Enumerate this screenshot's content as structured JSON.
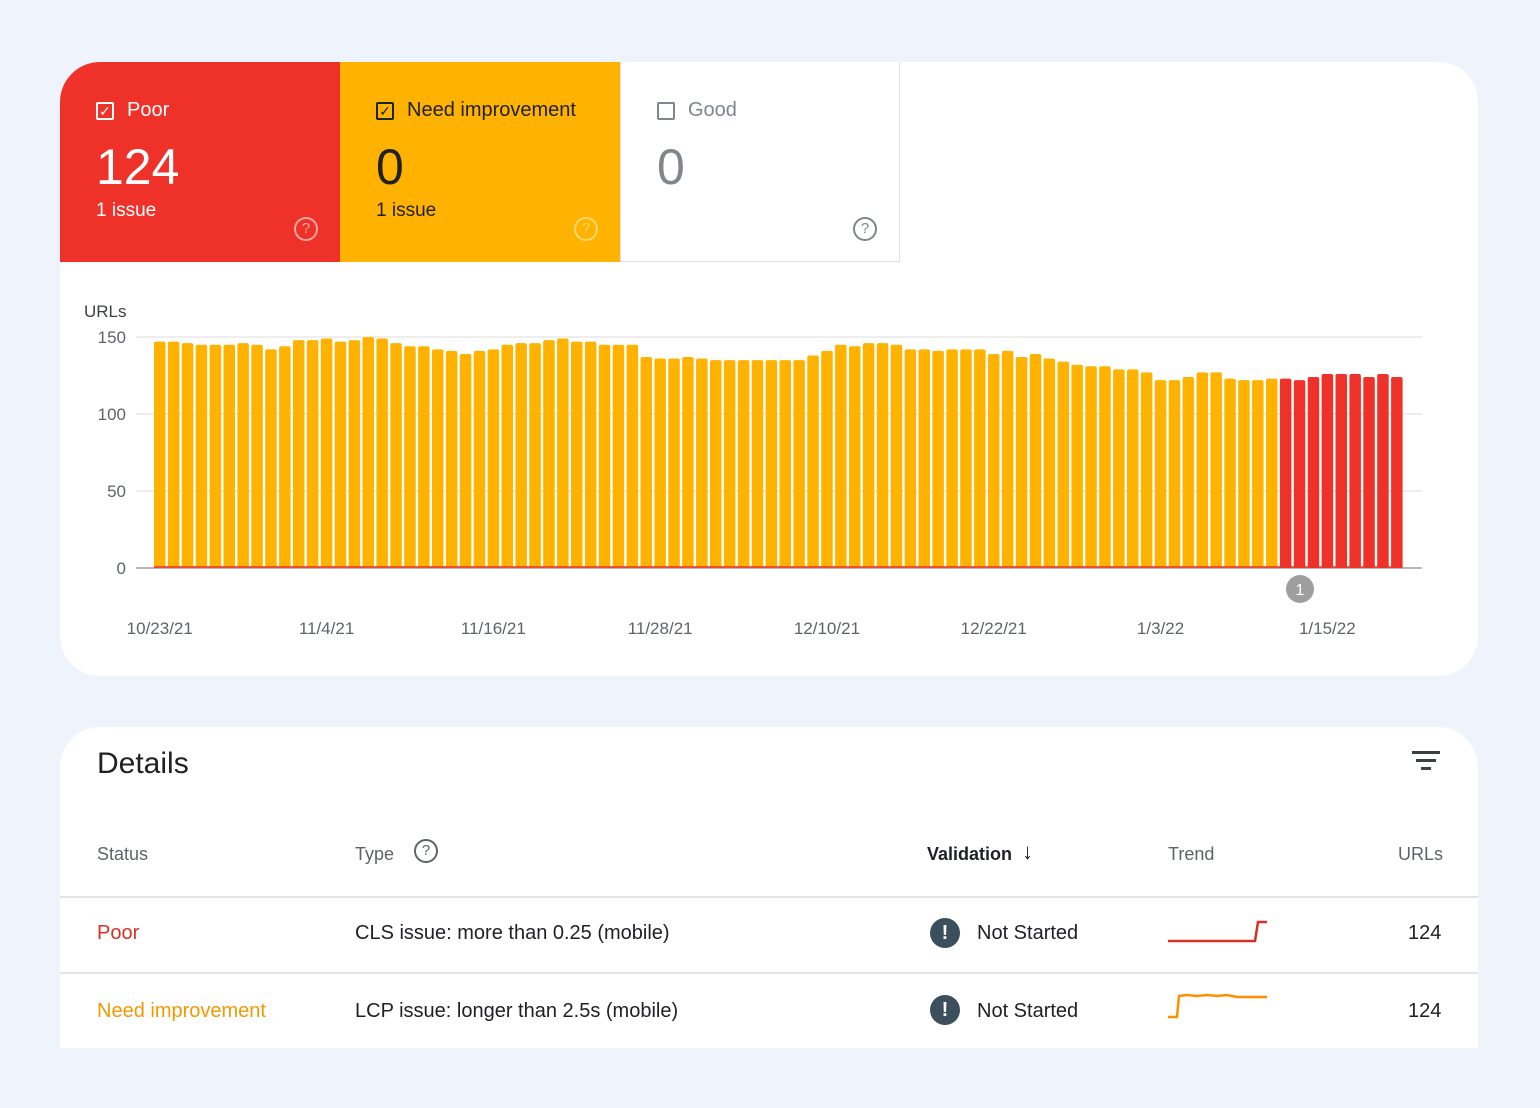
{
  "summary": {
    "poor": {
      "label": "Poor",
      "count": "124",
      "issues": "1 issue",
      "checked": true,
      "color": "#ee3129"
    },
    "need_improvement": {
      "label": "Need improvement",
      "count": "0",
      "issues": "1 issue",
      "checked": true,
      "color": "#ffb300"
    },
    "good": {
      "label": "Good",
      "count": "0",
      "checked": false
    }
  },
  "chart_data": {
    "type": "bar",
    "ylabel": "URLs",
    "ylim": [
      0,
      150
    ],
    "yticks": [
      "0",
      "50",
      "100",
      "150"
    ],
    "xticks": [
      "10/23/21",
      "11/4/21",
      "11/16/21",
      "11/28/21",
      "12/10/21",
      "12/22/21",
      "1/3/22",
      "1/15/22"
    ],
    "annotation": "1",
    "series": [
      {
        "name": "Need improvement",
        "color": "#ffb300",
        "values": [
          147,
          147,
          146,
          145,
          145,
          145,
          146,
          145,
          142,
          144,
          148,
          148,
          149,
          147,
          148,
          150,
          149,
          146,
          144,
          144,
          142,
          141,
          139,
          141,
          142,
          145,
          146,
          146,
          148,
          149,
          147,
          147,
          145,
          145,
          145,
          137,
          136,
          136,
          137,
          136,
          135,
          135,
          135,
          135,
          135,
          135,
          135,
          138,
          141,
          145,
          144,
          146,
          146,
          145,
          142,
          142,
          141,
          142,
          142,
          142,
          139,
          141,
          137,
          139,
          136,
          134,
          132,
          131,
          131,
          129,
          129,
          127,
          122,
          122,
          124,
          127,
          127,
          123,
          122,
          122,
          123,
          0,
          0,
          0,
          0,
          0,
          0,
          0,
          0,
          0
        ]
      },
      {
        "name": "Poor",
        "color": "#ee3129",
        "values": [
          0,
          0,
          0,
          0,
          0,
          0,
          0,
          0,
          0,
          0,
          0,
          0,
          0,
          0,
          0,
          0,
          0,
          0,
          0,
          0,
          0,
          0,
          0,
          0,
          0,
          0,
          0,
          0,
          0,
          0,
          0,
          0,
          0,
          0,
          0,
          0,
          0,
          0,
          0,
          0,
          0,
          0,
          0,
          0,
          0,
          0,
          0,
          0,
          0,
          0,
          0,
          0,
          0,
          0,
          0,
          0,
          0,
          0,
          0,
          0,
          0,
          0,
          0,
          0,
          0,
          0,
          0,
          0,
          0,
          0,
          0,
          0,
          0,
          0,
          0,
          0,
          0,
          0,
          0,
          0,
          0,
          123,
          122,
          124,
          126,
          126,
          126,
          124,
          126,
          124
        ]
      }
    ]
  },
  "details": {
    "title": "Details",
    "columns": {
      "status": "Status",
      "type": "Type",
      "validation": "Validation",
      "trend": "Trend",
      "urls": "URLs"
    },
    "rows": [
      {
        "status": "Poor",
        "status_color": "#d93025",
        "type": "CLS issue: more than 0.25 (mobile)",
        "validation": "Not Started",
        "urls": "124",
        "trend_color": "#d93025"
      },
      {
        "status": "Need improvement",
        "status_color": "#f29900",
        "type": "LCP issue: longer than 2.5s (mobile)",
        "validation": "Not Started",
        "urls": "124",
        "trend_color": "#ff8f00"
      }
    ]
  }
}
